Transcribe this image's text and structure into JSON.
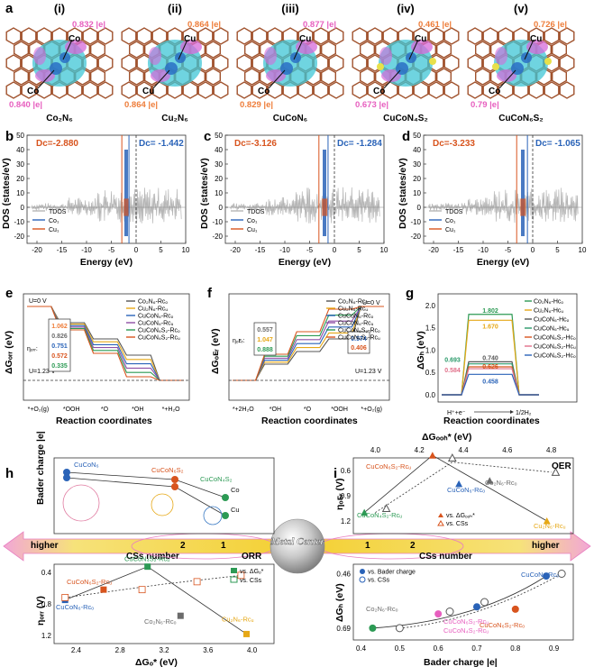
{
  "panel_a": {
    "label": "a",
    "structures": [
      {
        "roman": "(i)",
        "name": "Co₂N₆",
        "metals": [
          "Co",
          "Co"
        ],
        "charges": [
          "0.832 |e|",
          "0.840 |e|"
        ],
        "colors": [
          "#e75fbf",
          "#e75fbf"
        ]
      },
      {
        "roman": "(ii)",
        "name": "Cu₂N₆",
        "metals": [
          "Cu",
          "Cu"
        ],
        "charges": [
          "0.864 |e|",
          "0.864 |e|"
        ],
        "colors": [
          "#ee7d3a",
          "#ee7d3a"
        ]
      },
      {
        "roman": "(iii)",
        "name": "CuCoN₆",
        "metals": [
          "Cu",
          "Co"
        ],
        "charges": [
          "0.877 |e|",
          "0.829 |e|"
        ],
        "colors": [
          "#e75fbf",
          "#ee7d3a"
        ]
      },
      {
        "roman": "(iv)",
        "name": "CuCoN₄S₂",
        "metals": [
          "Cu",
          "Co"
        ],
        "charges": [
          "0.461 |e|",
          "0.673 |e|"
        ],
        "colors": [
          "#ee7d3a",
          "#e75fbf"
        ]
      },
      {
        "roman": "(v)",
        "name": "CuCoN₆S₂",
        "metals": [
          "Cu",
          "Co"
        ],
        "charges": [
          "0.726 |e|",
          "0.79 |e|"
        ],
        "colors": [
          "#ee7d3a",
          "#e75fbf"
        ]
      }
    ]
  },
  "dos_panels": [
    {
      "label": "b",
      "dc_cu": "Dᴄ=-2.880",
      "dc_co": "Dᴄ= -1.442",
      "legend": [
        "TDOS",
        "Co₁",
        "Cu₁"
      ],
      "cu_center": -2.88,
      "co_center": -1.442
    },
    {
      "label": "c",
      "dc_cu": "Dᴄ=-3.126",
      "dc_co": "Dᴄ= -1.284",
      "legend": [
        "TDOS",
        "Co₁",
        "Cu₁"
      ],
      "cu_center": -3.126,
      "co_center": -1.284
    },
    {
      "label": "d",
      "dc_cu": "Dᴄ=-3.233",
      "dc_co": "Dᴄ= -1.065",
      "legend": [
        "TDOS",
        "Co₁",
        "Cu₁"
      ],
      "cu_center": -3.233,
      "co_center": -1.065
    }
  ],
  "dos_axes": {
    "ylabel": "DOS (states/eV)",
    "xlabel": "Energy (eV)",
    "xticks": [
      "-20",
      "-15",
      "-10",
      "-5",
      "0",
      "5",
      "10"
    ],
    "yticks": [
      "50",
      "40",
      "30",
      "20",
      "10",
      "0",
      "-10",
      "-20"
    ],
    "xlim": [
      -22,
      10
    ],
    "ylim": [
      -25,
      50
    ]
  },
  "colors": {
    "cu": "#d8541e",
    "co": "#2a63b8",
    "tdos": "#b5b5b5",
    "orange": "#ee7d3a",
    "pink": "#e75fbf",
    "green": "#2c9a54",
    "gold": "#e6a817",
    "gray": "#6b6b6b",
    "blue": "#2a63b8",
    "red": "#d8541e"
  },
  "panel_e": {
    "label": "e",
    "ylabel": "ΔGₒᵣᵣ (eV)",
    "u0": "U=0 V",
    "u123": "U=1.23 V",
    "eta_label": "ηₒᵣᵣ:",
    "eta_values": [
      "1.062",
      "0.826",
      "0.751",
      "0.572",
      "0.335"
    ],
    "legend": [
      "Co₂N₆-Rᴄₒ",
      "Cu₂N₆-Rᴄᵤ",
      "CuCoN₆-Rᴄₒ",
      "CuCoN₆-Rᴄᵤ",
      "CuCoN₆S₂-Rᴄₒ",
      "CuCoN₆S₂-Rᴄᵤ"
    ],
    "xcats": [
      "*+O₂(g)",
      "*OOH",
      "*O",
      "*OH",
      "*+H₂O"
    ],
    "xlabel": "Reaction coordinates"
  },
  "panel_f": {
    "label": "f",
    "ylabel": "ΔGₒᴇᵣ (eV)",
    "u0": "U=0 V",
    "u123": "U=1.23 V",
    "eta_label": "ηₒᴇᵣ:",
    "eta_values_a": [
      "0.557",
      "1.047",
      "0.888"
    ],
    "eta_values_b": [
      "0.574",
      "0.406"
    ],
    "legend": [
      "Co₂N₆-Rᴄₒ",
      "Cu₂N₆-Rᴄᵤ",
      "CuCoN₆-Rᴄₒ",
      "CuCoN₆-Rᴄᵤ",
      "CuCoN₆S₂-Rᴄₒ",
      "CuCoN₆S₂-Rᴄᵤ"
    ],
    "xcats": [
      "*+2H₂O",
      "*OH",
      "*O",
      "*OOH",
      "*+O₂(g)"
    ],
    "xlabel": "Reaction coordinates"
  },
  "panel_g": {
    "label": "g",
    "ylabel": "ΔGₕ (eV)",
    "yticks": [
      "2.0",
      "1.5",
      "1.0",
      "0.5",
      "0.0"
    ],
    "values": [
      "1.802",
      "1.670",
      "0.740",
      "0.693",
      "0.626",
      "0.584",
      "0.458"
    ],
    "legend": [
      "Co₂N₆-Hᴄₒ",
      "Cu₂N₆-Hᴄᵤ",
      "CuCoN₆-Hᴄₒ",
      "CuCoN₆-Hᴄᵤ",
      "CuCoN₆S₂-Hᴄₒ",
      "CuCoN₆S₂-Hᴄᵤ",
      "CuCoN₆S₂-Hᴄₒ"
    ],
    "xcat_left": "H⁺+e⁻",
    "xcat_right": "1/2H₂",
    "xlabel": "Reaction coordinates"
  },
  "panel_h": {
    "label": "h",
    "top_ylabel": "Bader charge |e|",
    "bot_ylabel": "ηₒᵣᵣ (V)",
    "xlabel": "ΔGₒ* (eV)",
    "xticks": [
      "2.4",
      "2.8",
      "3.2",
      "3.6",
      "4.0"
    ],
    "yticks_bot": [
      "0.4",
      "0.8",
      "1.2"
    ],
    "names_top": [
      "CuCoN₆",
      "CuCoN₆S₂",
      "CuCoN₄S₂",
      "Co",
      "Cu"
    ],
    "names_bot": [
      "CuCoN₆S₂-Rᴄᵤ",
      "CuCoN₄S₂-Rᴄᵤ",
      "CuCoN₆-Rᴄₒ",
      "Co₂N₆-Rᴄₒ",
      "Cu₂N₆-Rᴄᵤ"
    ],
    "legend": [
      "vs. ΔGₒ*",
      "vs. CSs"
    ],
    "orr": "ORR"
  },
  "panel_i": {
    "label": "i",
    "top_xlabel": "ΔGₒₒₕ* (eV)",
    "top_xticks": [
      "4.0",
      "4.2",
      "4.4",
      "4.6",
      "4.8"
    ],
    "top_ylabel": "ηₒᴇᵣ (V)",
    "top_yticks": [
      "0.6",
      "0.9",
      "1.2"
    ],
    "bot_ylabel": "ΔGₕ (eV)",
    "bot_yticks": [
      "0.46",
      "0.69"
    ],
    "xlabel": "Bader charge |e|",
    "xticks": [
      "0.4",
      "0.5",
      "0.6",
      "0.7",
      "0.8",
      "0.9"
    ],
    "names_top": [
      "CuCoN₆S₂-Rᴄᵤ",
      "Co₂N₆-Rᴄₒ",
      "CuCoN₆-Rᴄₒ",
      "CuCoN₄S₂-Rᴄᵤ",
      "Cu₂N₆-Rᴄᵤ"
    ],
    "names_bot": [
      "CuCoN₆-Rᴄₒ",
      "CuCoN₄S₂-Rᴄᵤ",
      "CuCoN₆S₂-Rᴄₒ",
      "CuCoN₆S₂-Rᴄᵤ",
      "Co₂N₆-Rᴄₒ"
    ],
    "legend_top": [
      "vs. ΔGₒₒₕ*",
      "vs. CSs"
    ],
    "legend_bot": [
      "vs. Bader charge",
      "vs. CSs"
    ],
    "oer": "OER"
  },
  "center_band": {
    "higher_left": "higher",
    "csn_left": "CSs number",
    "nums_left": [
      "2",
      "1"
    ],
    "metal_center": "Metal Center",
    "nums_right": [
      "1",
      "2"
    ],
    "csn_right": "CSs number",
    "higher_right": "higher"
  }
}
